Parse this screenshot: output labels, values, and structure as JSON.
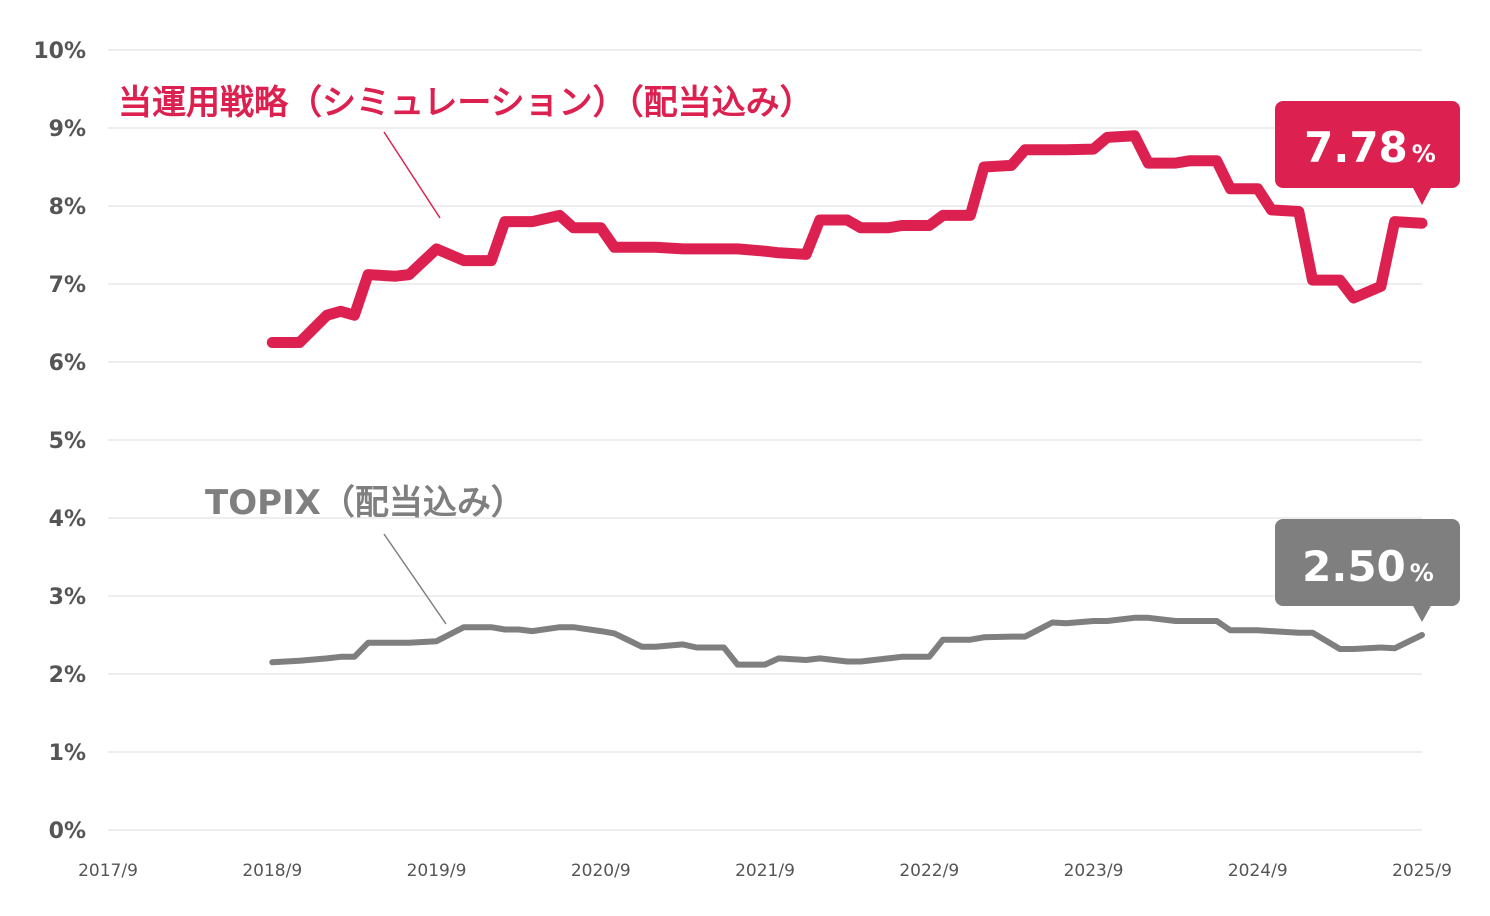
{
  "chart_data": {
    "type": "line",
    "ylim": [
      0,
      10
    ],
    "yticks": [
      "0%",
      "1%",
      "2%",
      "3%",
      "4%",
      "5%",
      "6%",
      "7%",
      "8%",
      "9%",
      "10%"
    ],
    "xlim": [
      "2017/9",
      "2025/9"
    ],
    "xticks": [
      "2017/9",
      "2018/9",
      "2019/9",
      "2020/9",
      "2021/9",
      "2022/9",
      "2023/9",
      "2024/9",
      "2025/9"
    ],
    "grid": true,
    "x": [
      "2018/9",
      "2018/11",
      "2019/1",
      "2019/2",
      "2019/3",
      "2019/4",
      "2019/6",
      "2019/7",
      "2019/9",
      "2019/11",
      "2020/1",
      "2020/2",
      "2020/3",
      "2020/4",
      "2020/6",
      "2020/7",
      "2020/9",
      "2020/10",
      "2020/12",
      "2021/1",
      "2021/3",
      "2021/4",
      "2021/6",
      "2021/7",
      "2021/9",
      "2021/10",
      "2021/12",
      "2022/1",
      "2022/3",
      "2022/4",
      "2022/6",
      "2022/7",
      "2022/9",
      "2022/10",
      "2022/12",
      "2023/1",
      "2023/3",
      "2023/4",
      "2023/6",
      "2023/7",
      "2023/9",
      "2023/10",
      "2023/12",
      "2024/1",
      "2024/3",
      "2024/4",
      "2024/6",
      "2024/7",
      "2024/9",
      "2024/10",
      "2024/12",
      "2025/1",
      "2025/3",
      "2025/4",
      "2025/6",
      "2025/7",
      "2025/9"
    ],
    "series": [
      {
        "name": "当運用戦略（シミュレーション）（配当込み）",
        "color": "#DC2150",
        "values": [
          6.25,
          6.25,
          6.6,
          6.65,
          6.6,
          7.12,
          7.1,
          7.12,
          7.45,
          7.3,
          7.3,
          7.8,
          7.8,
          7.8,
          7.88,
          7.72,
          7.72,
          7.47,
          7.47,
          7.47,
          7.45,
          7.45,
          7.45,
          7.45,
          7.42,
          7.4,
          7.38,
          7.82,
          7.82,
          7.72,
          7.72,
          7.75,
          7.75,
          7.88,
          7.88,
          8.5,
          8.52,
          8.72,
          8.72,
          8.72,
          8.73,
          8.88,
          8.9,
          8.55,
          8.55,
          8.58,
          8.58,
          8.22,
          8.22,
          7.95,
          7.93,
          7.05,
          7.05,
          6.82,
          6.97,
          7.8,
          7.78
        ]
      },
      {
        "name": "TOPIX（配当込み）",
        "color": "#7F7F7F",
        "values": [
          2.15,
          2.17,
          2.2,
          2.22,
          2.22,
          2.4,
          2.4,
          2.4,
          2.42,
          2.6,
          2.6,
          2.57,
          2.57,
          2.55,
          2.6,
          2.6,
          2.55,
          2.52,
          2.35,
          2.35,
          2.38,
          2.34,
          2.34,
          2.12,
          2.12,
          2.2,
          2.18,
          2.2,
          2.16,
          2.16,
          2.2,
          2.22,
          2.22,
          2.44,
          2.44,
          2.47,
          2.48,
          2.48,
          2.66,
          2.65,
          2.68,
          2.68,
          2.72,
          2.72,
          2.68,
          2.68,
          2.68,
          2.56,
          2.56,
          2.55,
          2.53,
          2.53,
          2.32,
          2.32,
          2.34,
          2.33,
          2.5
        ]
      }
    ],
    "callouts": [
      {
        "value": "7.78",
        "unit": "%",
        "color": "#DC2150"
      },
      {
        "value": "2.50",
        "unit": "%",
        "color": "#7F7F7F"
      }
    ]
  }
}
